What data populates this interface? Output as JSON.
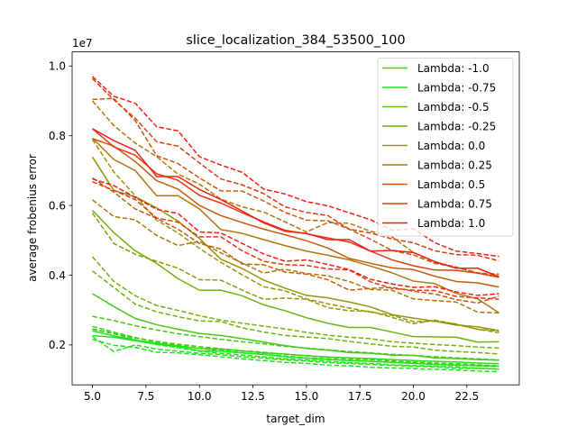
{
  "chart_data": {
    "type": "line",
    "title": "slice_localization_384_53500_100",
    "xlabel": "target_dim",
    "ylabel": "average frobenius error",
    "offset_label": "1e7",
    "xlim": [
      4.05,
      24.95
    ],
    "ylim": [
      0.0855,
      1.0405
    ],
    "xticks": [
      5.0,
      7.5,
      10.0,
      12.5,
      15.0,
      17.5,
      20.0,
      22.5
    ],
    "xtick_labels": [
      "5.0",
      "7.5",
      "10.0",
      "12.5",
      "15.0",
      "17.5",
      "20.0",
      "22.5"
    ],
    "yticks": [
      0.2,
      0.4,
      0.6,
      0.8,
      1.0
    ],
    "ytick_labels": [
      "0.2",
      "0.4",
      "0.6",
      "0.8",
      "1.0"
    ],
    "grid": false,
    "legend_position": "upper right",
    "x": [
      5,
      6,
      7,
      8,
      9,
      10,
      11,
      12,
      13,
      14,
      15,
      16,
      17,
      18,
      19,
      20,
      21,
      22,
      23,
      24
    ],
    "series": [
      {
        "name": "Lambda: -1.0",
        "color": "#1ee61e",
        "values": [
          0.227,
          0.222,
          0.212,
          0.202,
          0.195,
          0.183,
          0.182,
          0.177,
          0.173,
          0.166,
          0.162,
          0.158,
          0.155,
          0.153,
          0.15,
          0.147,
          0.144,
          0.142,
          0.141,
          0.139
        ],
        "dashed": [
          [
            0.245,
            0.232,
            0.215,
            0.201,
            0.192,
            0.182,
            0.176,
            0.171,
            0.166,
            0.16,
            0.157,
            0.153,
            0.149,
            0.147,
            0.143,
            0.141,
            0.139,
            0.137,
            0.133,
            0.131
          ],
          [
            0.216,
            0.199,
            0.193,
            0.179,
            0.177,
            0.172,
            0.166,
            0.16,
            0.155,
            0.15,
            0.147,
            0.142,
            0.14,
            0.136,
            0.134,
            0.132,
            0.13,
            0.128,
            0.125,
            0.123
          ]
        ]
      },
      {
        "name": "Lambda: -0.75",
        "color": "#28e119",
        "values": [
          0.24,
          0.226,
          0.214,
          0.205,
          0.197,
          0.19,
          0.188,
          0.183,
          0.177,
          0.174,
          0.169,
          0.165,
          0.163,
          0.161,
          0.158,
          0.155,
          0.153,
          0.151,
          0.148,
          0.146
        ],
        "dashed": [
          [
            0.253,
            0.237,
            0.221,
            0.208,
            0.199,
            0.19,
            0.184,
            0.178,
            0.173,
            0.168,
            0.163,
            0.16,
            0.157,
            0.153,
            0.15,
            0.148,
            0.145,
            0.142,
            0.14,
            0.138
          ],
          [
            0.224,
            0.181,
            0.2,
            0.188,
            0.182,
            0.176,
            0.172,
            0.166,
            0.162,
            0.157,
            0.154,
            0.149,
            0.147,
            0.144,
            0.141,
            0.139,
            0.137,
            0.133,
            0.133,
            0.13
          ]
        ]
      },
      {
        "name": "Lambda: -0.5",
        "color": "#46c814",
        "values": [
          0.347,
          0.31,
          0.276,
          0.258,
          0.245,
          0.233,
          0.227,
          0.218,
          0.208,
          0.198,
          0.19,
          0.185,
          0.178,
          0.176,
          0.171,
          0.17,
          0.163,
          0.161,
          0.158,
          0.156
        ],
        "dashed": [
          [
            0.282,
            0.27,
            0.255,
            0.243,
            0.232,
            0.224,
            0.216,
            0.209,
            0.203,
            0.196,
            0.191,
            0.186,
            0.181,
            0.177,
            0.173,
            0.17,
            0.166,
            0.163,
            0.16,
            0.157
          ],
          [
            0.246,
            0.233,
            0.22,
            0.21,
            0.202,
            0.195,
            0.189,
            0.183,
            0.179,
            0.173,
            0.169,
            0.165,
            0.161,
            0.158,
            0.154,
            0.151,
            0.148,
            0.146,
            0.143,
            0.14
          ]
        ]
      },
      {
        "name": "Lambda: -0.25",
        "color": "#6eb40f",
        "values": [
          0.586,
          0.522,
          0.47,
          0.434,
          0.39,
          0.357,
          0.357,
          0.341,
          0.315,
          0.298,
          0.278,
          0.262,
          0.25,
          0.25,
          0.237,
          0.224,
          0.223,
          0.222,
          0.208,
          0.209
        ],
        "dashed": [
          [
            0.453,
            0.382,
            0.341,
            0.313,
            0.299,
            0.284,
            0.271,
            0.262,
            0.254,
            0.246,
            0.236,
            0.228,
            0.222,
            0.218,
            0.209,
            0.205,
            0.201,
            0.198,
            0.194,
            0.191
          ],
          [
            0.412,
            0.365,
            0.317,
            0.295,
            0.281,
            0.269,
            0.267,
            0.249,
            0.237,
            0.227,
            0.223,
            0.218,
            0.21,
            0.203,
            0.196,
            0.194,
            0.185,
            0.181,
            0.178,
            0.174
          ]
        ]
      },
      {
        "name": "Lambda: 0.0",
        "color": "#91960a",
        "values": [
          0.739,
          0.643,
          0.625,
          0.593,
          0.555,
          0.505,
          0.446,
          0.419,
          0.386,
          0.363,
          0.342,
          0.335,
          0.323,
          0.309,
          0.287,
          0.277,
          0.268,
          0.257,
          0.252,
          0.241
        ],
        "dashed": [
          [
            0.789,
            0.696,
            0.628,
            0.558,
            0.521,
            0.477,
            0.437,
            0.401,
            0.367,
            0.355,
            0.332,
            0.318,
            0.306,
            0.294,
            0.285,
            0.267,
            0.268,
            0.26,
            0.245,
            0.235
          ],
          [
            0.578,
            0.491,
            0.46,
            0.44,
            0.42,
            0.387,
            0.386,
            0.357,
            0.331,
            0.334,
            0.331,
            0.307,
            0.298,
            0.296,
            0.279,
            0.261,
            0.271,
            0.259,
            0.245,
            0.24
          ]
        ]
      },
      {
        "name": "Lambda: 0.25",
        "color": "#af780a",
        "values": [
          0.793,
          0.732,
          0.7,
          0.628,
          0.628,
          0.59,
          0.531,
          0.52,
          0.502,
          0.485,
          0.469,
          0.457,
          0.444,
          0.426,
          0.407,
          0.383,
          0.376,
          0.348,
          0.332,
          0.292
        ],
        "dashed": [
          [
            0.9,
            0.829,
            0.779,
            0.74,
            0.69,
            0.661,
            0.618,
            0.596,
            0.581,
            0.553,
            0.524,
            0.551,
            0.549,
            0.526,
            0.51,
            0.465,
            0.437,
            0.423,
            0.407,
            0.397
          ],
          [
            0.616,
            0.568,
            0.559,
            0.514,
            0.485,
            0.497,
            0.464,
            0.435,
            0.406,
            0.417,
            0.405,
            0.398,
            0.382,
            0.359,
            0.357,
            0.332,
            0.327,
            0.323,
            0.294,
            0.292
          ]
        ]
      },
      {
        "name": "Lambda: 0.5",
        "color": "#c85a0a",
        "values": [
          0.792,
          0.77,
          0.726,
          0.671,
          0.647,
          0.6,
          0.571,
          0.551,
          0.532,
          0.516,
          0.499,
          0.478,
          0.448,
          0.434,
          0.421,
          0.416,
          0.397,
          0.382,
          0.378,
          0.366
        ],
        "dashed": [
          [
            0.904,
            0.907,
            0.843,
            0.743,
            0.72,
            0.679,
            0.642,
            0.641,
            0.613,
            0.58,
            0.558,
            0.556,
            0.532,
            0.503,
            0.471,
            0.458,
            0.434,
            0.423,
            0.406,
            0.403
          ],
          [
            0.679,
            0.638,
            0.59,
            0.563,
            0.532,
            0.491,
            0.475,
            0.432,
            0.43,
            0.409,
            0.403,
            0.387,
            0.357,
            0.362,
            0.365,
            0.354,
            0.346,
            0.33,
            0.32,
            0.34
          ]
        ]
      },
      {
        "name": "Lambda: 0.75",
        "color": "#e13c0f",
        "values": [
          0.82,
          0.768,
          0.744,
          0.691,
          0.672,
          0.629,
          0.607,
          0.579,
          0.553,
          0.529,
          0.519,
          0.507,
          0.495,
          0.469,
          0.444,
          0.427,
          0.415,
          0.414,
          0.406,
          0.394
        ],
        "dashed": [
          [
            0.964,
            0.903,
            0.85,
            0.783,
            0.77,
            0.722,
            0.676,
            0.659,
            0.634,
            0.596,
            0.58,
            0.571,
            0.532,
            0.521,
            0.504,
            0.493,
            0.47,
            0.459,
            0.457,
            0.441
          ],
          [
            0.668,
            0.643,
            0.617,
            0.564,
            0.552,
            0.51,
            0.51,
            0.47,
            0.44,
            0.43,
            0.428,
            0.418,
            0.415,
            0.381,
            0.362,
            0.357,
            0.356,
            0.339,
            0.335,
            0.331
          ]
        ]
      },
      {
        "name": "Lambda: 1.0",
        "color": "#f01e14",
        "values": [
          0.82,
          0.786,
          0.758,
          0.683,
          0.683,
          0.646,
          0.617,
          0.584,
          0.55,
          0.526,
          0.52,
          0.502,
          0.502,
          0.469,
          0.471,
          0.465,
          0.439,
          0.42,
          0.42,
          0.396
        ],
        "dashed": [
          [
            0.97,
            0.913,
            0.893,
            0.826,
            0.814,
            0.74,
            0.716,
            0.695,
            0.647,
            0.633,
            0.611,
            0.599,
            0.579,
            0.559,
            0.529,
            0.533,
            0.493,
            0.469,
            0.462,
            0.454
          ],
          [
            0.676,
            0.657,
            0.623,
            0.589,
            0.577,
            0.524,
            0.521,
            0.491,
            0.461,
            0.44,
            0.444,
            0.431,
            0.416,
            0.388,
            0.375,
            0.365,
            0.367,
            0.352,
            0.342,
            0.347
          ]
        ]
      }
    ]
  }
}
